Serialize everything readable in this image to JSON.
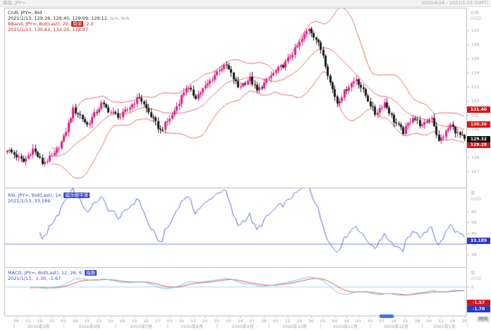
{
  "topbar": {
    "title": "蜡烛, JPY=",
    "range": "2020/4/28 - 2021/1/26 (GMT)"
  },
  "main_legend": {
    "line1": "Cndl, JPY=, Bid",
    "line2": "2021/1/13, 129.26, 129.45, 129.09, 129.12,",
    "line2_na": " N/A, N/A",
    "line3_prefix": "BBand, JPY=, Bid(Last), 20, ",
    "line3_chip": "简单",
    "line3_suffix": ", 2.0",
    "line4": "2021/1/13, 130.62, 132.26, 128.97"
  },
  "rsi_legend": {
    "line1_prefix": "RSI, JPY=, Bid(Last), 14, ",
    "line1_chip": "威尔德平滑",
    "line2": "2021/1/13, 33.189"
  },
  "macd_legend": {
    "line1_prefix": "MACD, JPY=, Bid(Last), 12, 26, 9, ",
    "line1_chip": "指数",
    "line2": "2021/1/13, -1.30, -1.67"
  },
  "axis": {
    "price_title": "价格",
    "price_unit": "/USD",
    "value_title": "值",
    "value_unit": "/USD",
    "time_title": "时间",
    "boxes": {
      "bb_upper": "131.40",
      "bb_mid": "130.36",
      "bb_lower": "129.28",
      "last": "129.32",
      "rsi": "33.189",
      "macd_signal": "-1.57",
      "macd_line": "-1.70"
    }
  },
  "colors": {
    "candle_up": "#e0218a",
    "candle_down": "#1a1a1a",
    "bband": "#e4736f",
    "rsi_line": "#5b6bde",
    "rsi_level": "#7b88e6",
    "macd_line": "#72c7e8",
    "macd_signal": "#e05555",
    "frame": "#bbbbbb",
    "tick_text": "#a0a0a0"
  },
  "chart_data": [
    {
      "type": "candlestick",
      "title": "Cndl, JPY=, Bid",
      "x_range": [
        "2020/4/28",
        "2021/1/26"
      ],
      "y_ticks": [
        137,
        136,
        135,
        134,
        133,
        132,
        131,
        130,
        129,
        128,
        127,
        126
      ],
      "cursor_ohlc": {
        "date": "2021/1/13",
        "open": 129.26,
        "high": 129.45,
        "low": 129.09,
        "close": 129.12
      },
      "last_price": 129.32,
      "overlay_bband": {
        "period": 20,
        "method": "简单",
        "stdev": 2.0,
        "cursor_values": {
          "mid": 130.62,
          "upper": 132.26,
          "lower": 128.97
        },
        "latest_values": {
          "upper": 131.4,
          "mid": 130.36,
          "lower": 129.28
        }
      },
      "total_days": 195,
      "close_waypoints": [
        [
          0,
          128.6
        ],
        [
          4,
          128.1
        ],
        [
          7,
          127.7
        ],
        [
          11,
          128.6
        ],
        [
          15,
          127.6
        ],
        [
          20,
          128.2
        ],
        [
          24,
          129.4
        ],
        [
          28,
          131.4
        ],
        [
          31,
          131.0
        ],
        [
          34,
          130.3
        ],
        [
          40,
          131.8
        ],
        [
          44,
          131.2
        ],
        [
          48,
          130.9
        ],
        [
          52,
          131.6
        ],
        [
          56,
          132.3
        ],
        [
          60,
          131.2
        ],
        [
          65,
          129.9
        ],
        [
          70,
          131.0
        ],
        [
          76,
          133.0
        ],
        [
          80,
          132.3
        ],
        [
          85,
          133.2
        ],
        [
          90,
          134.3
        ],
        [
          93,
          134.5
        ],
        [
          98,
          133.0
        ],
        [
          103,
          133.6
        ],
        [
          106,
          132.7
        ],
        [
          112,
          133.8
        ],
        [
          118,
          134.7
        ],
        [
          124,
          136.1
        ],
        [
          128,
          137.2
        ],
        [
          131,
          136.4
        ],
        [
          134,
          135.3
        ],
        [
          137,
          133.3
        ],
        [
          140,
          131.9
        ],
        [
          144,
          132.9
        ],
        [
          148,
          133.6
        ],
        [
          152,
          132.4
        ],
        [
          156,
          131.1
        ],
        [
          160,
          131.9
        ],
        [
          164,
          130.6
        ],
        [
          168,
          129.8
        ],
        [
          172,
          130.9
        ],
        [
          176,
          130.2
        ],
        [
          180,
          130.9
        ],
        [
          183,
          129.1
        ],
        [
          186,
          129.8
        ],
        [
          188,
          130.3
        ],
        [
          191,
          129.7
        ],
        [
          194,
          129.32
        ]
      ]
    },
    {
      "type": "line",
      "name": "RSI",
      "period": 14,
      "smoothing": "威尔德平滑",
      "cursor": {
        "date": "2021/1/13",
        "value": 33.189
      },
      "level_line": 30,
      "y_ticks": [
        70,
        60,
        50,
        40,
        30,
        20
      ]
    },
    {
      "type": "line",
      "name": "MACD",
      "params": [
        12,
        26,
        9
      ],
      "method": "指数",
      "cursor": {
        "date": "2021/1/13",
        "macd": -1.3,
        "signal": -1.67
      },
      "latest": {
        "macd": -1.7,
        "signal": -1.57
      },
      "zero_line": 0,
      "y_ticks": [
        1,
        0
      ]
    }
  ],
  "x_axis": {
    "day_labels": [
      "04",
      "11",
      "18",
      "25",
      "01",
      "08",
      "15",
      "22",
      "29",
      "06",
      "13",
      "20",
      "27",
      "03",
      "10",
      "17",
      "24",
      "31",
      "07",
      "14",
      "21",
      "28",
      "05",
      "12",
      "19",
      "26",
      "02",
      "09",
      "16",
      "23",
      "30",
      "07",
      "14",
      "21",
      "28",
      "04",
      "11",
      "18",
      "25"
    ],
    "first_label_day": 4,
    "label_step": 5,
    "month_boundaries": [
      3,
      24,
      46,
      68,
      89,
      111,
      133,
      154,
      176
    ],
    "month_labels": [
      "2020年5月",
      "2020年6月",
      "2020年7月",
      "2020年8月",
      "2020年9月",
      "2020年10月",
      "2020年11月",
      "2020年12月",
      "2021年1月"
    ]
  }
}
